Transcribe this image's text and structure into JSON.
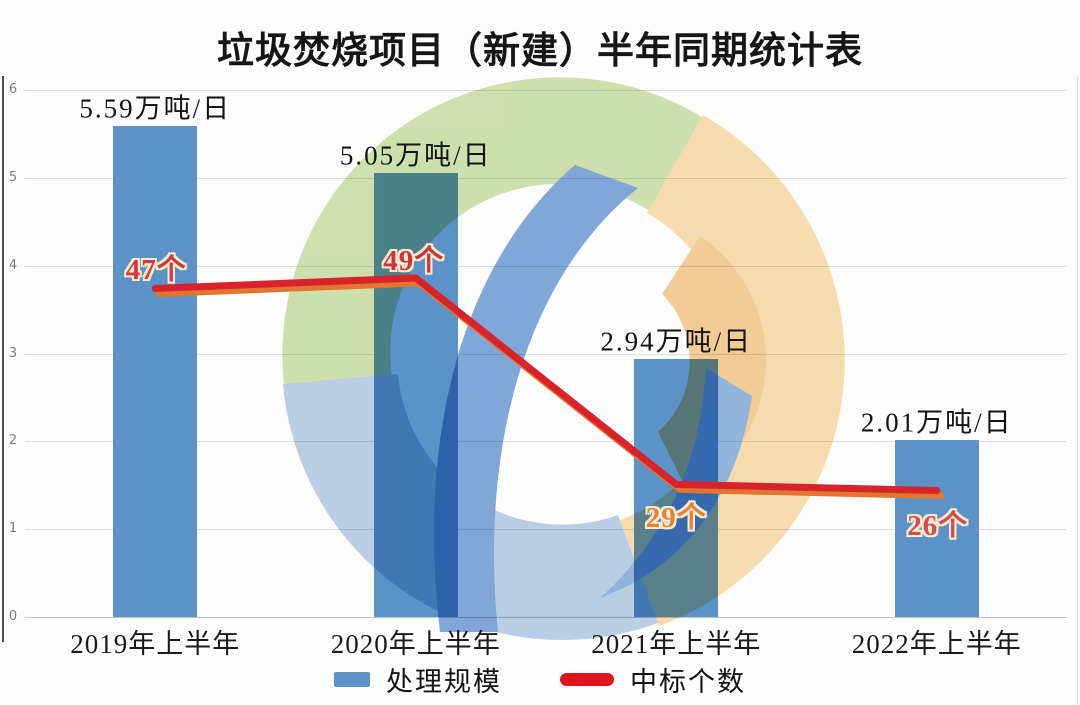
{
  "title": "垃圾焚烧项目（新建）半年同期统计表",
  "y_axis": {
    "ticks": [
      "6",
      "5",
      "4",
      "3",
      "2",
      "1",
      "0"
    ]
  },
  "chart_data": {
    "type": "bar",
    "combo": "bar+line",
    "title": "垃圾焚烧项目（新建）半年同期统计表",
    "categories": [
      "2019年上半年",
      "2020年上半年",
      "2021年上半年",
      "2022年上半年"
    ],
    "series": [
      {
        "name": "处理规模",
        "type": "bar",
        "unit": "万吨/日",
        "color": "#5b92c7",
        "values": [
          5.59,
          5.05,
          2.94,
          2.01
        ],
        "data_labels": [
          "5.59万吨/日",
          "5.05万吨/日",
          "2.94万吨/日",
          "2.01万吨/日"
        ]
      },
      {
        "name": "中标个数",
        "type": "line",
        "unit": "个",
        "color": "#d8232a",
        "shadow_color": "#e0762f",
        "values": [
          47,
          49,
          29,
          26
        ],
        "data_labels": [
          "47个",
          "49个",
          "29个",
          "26个"
        ],
        "label_colors": [
          "#d13a42",
          "#ce3340",
          "#e2813b",
          "#d44a55"
        ],
        "plotted_y_left_axis": [
          3.74,
          3.86,
          1.51,
          1.44
        ],
        "label_offsets": [
          [
            1,
            -22
          ],
          [
            -2,
            -20
          ],
          [
            0,
            31
          ],
          [
            1,
            32
          ]
        ]
      }
    ],
    "ylim": [
      0,
      6
    ],
    "grid": true,
    "legend_position": "bottom"
  },
  "legend": {
    "items": [
      {
        "label": "处理规模",
        "color": "#5b92c7",
        "shape": "rect"
      },
      {
        "label": "中标个数",
        "color": "#e0151c",
        "shape": "line"
      }
    ]
  }
}
